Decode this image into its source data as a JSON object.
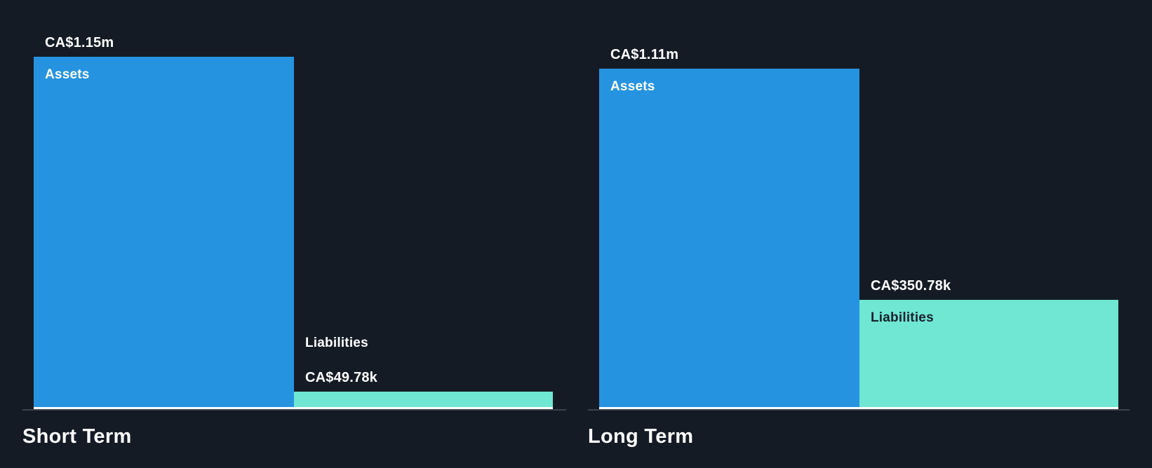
{
  "colors": {
    "background": "#151B24",
    "assets_bar": "#2693E0",
    "liabilities_bar": "#6FE7D2",
    "axis_line": "#3C434E",
    "baseline_under_bars": "#FFFFFF",
    "text_light": "#FFFFFF",
    "text_dark": "#17202B"
  },
  "chart_data": [
    {
      "type": "bar",
      "title": "Short Term",
      "currency": "CA$",
      "categories": [
        "Assets",
        "Liabilities"
      ],
      "values": [
        1150000,
        49780
      ],
      "value_labels": [
        "CA$1.15m",
        "CA$49.78k"
      ],
      "color_keys": [
        "assets_bar",
        "liabilities_bar"
      ],
      "ylim": [
        0,
        1150000
      ],
      "grid": false,
      "legend": false,
      "xlabel": "",
      "ylabel": ""
    },
    {
      "type": "bar",
      "title": "Long Term",
      "currency": "CA$",
      "categories": [
        "Assets",
        "Liabilities"
      ],
      "values": [
        1110000,
        350780
      ],
      "value_labels": [
        "CA$1.11m",
        "CA$350.78k"
      ],
      "color_keys": [
        "assets_bar",
        "liabilities_bar"
      ],
      "ylim": [
        0,
        1150000
      ],
      "grid": false,
      "legend": false,
      "xlabel": "",
      "ylabel": ""
    }
  ]
}
